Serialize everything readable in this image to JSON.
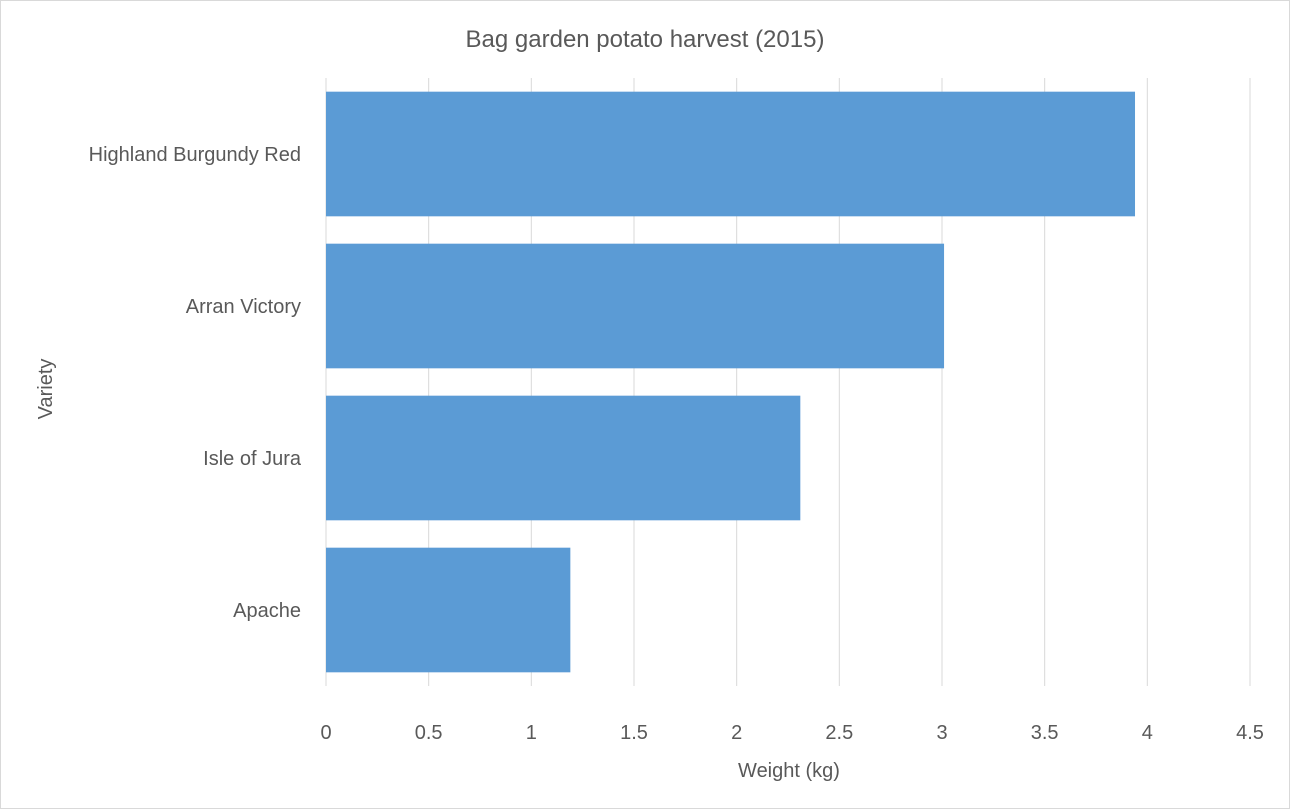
{
  "chart_data": {
    "type": "bar",
    "orientation": "horizontal",
    "title": "Bag garden potato harvest (2015)",
    "xlabel": "Weight (kg)",
    "ylabel": "Variety",
    "categories": [
      "Highland Burgundy Red",
      "Arran Victory",
      "Isle of Jura",
      "Apache"
    ],
    "values": [
      3.94,
      3.01,
      2.31,
      1.19
    ],
    "xlim": [
      0,
      4.5
    ],
    "xticks": [
      "0",
      "0.5",
      "1",
      "1.5",
      "2",
      "2.5",
      "3",
      "3.5",
      "4",
      "4.5"
    ],
    "grid": "vertical",
    "legend": "none",
    "bar_color": "#5b9bd5",
    "grid_color": "#d9d9d9",
    "text_color": "#595959"
  }
}
